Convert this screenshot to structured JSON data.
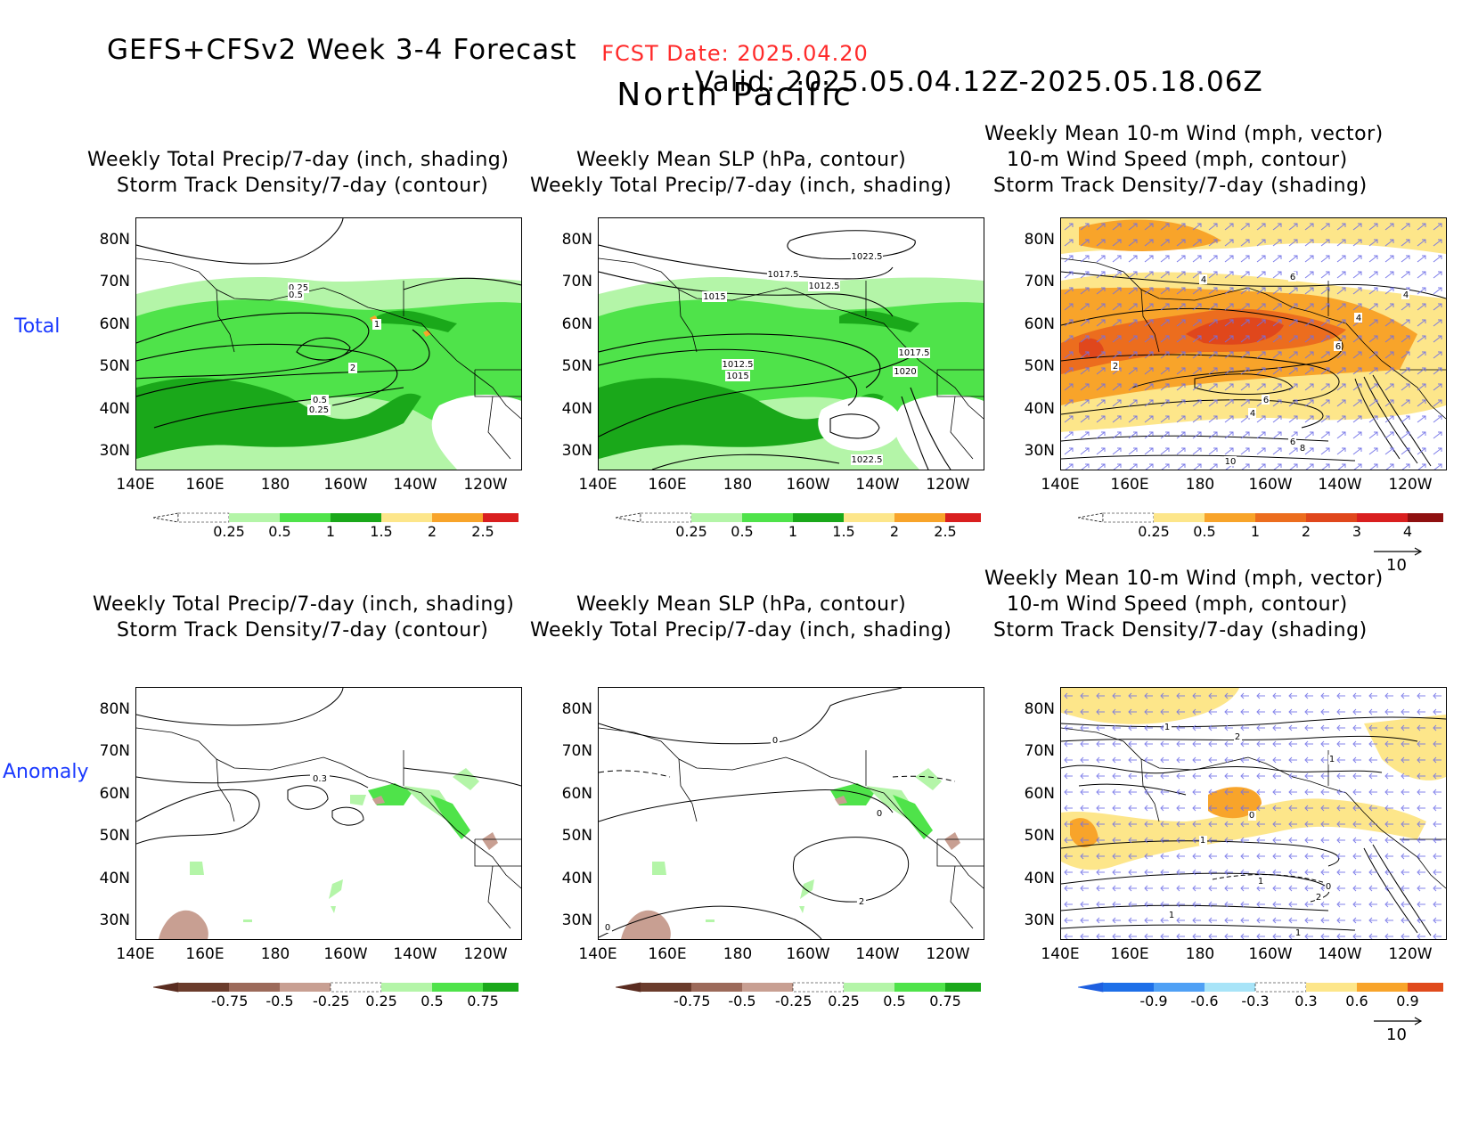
{
  "header": {
    "title_left": "GEFS+CFSv2 Week 3-4 Forecast",
    "title_right": "Valid: 2025.05.04.12Z-2025.05.18.06Z",
    "fcst_date": "FCST Date: 2025.04.20",
    "region": "North Pacific"
  },
  "rows": {
    "total": "Total",
    "anomaly": "Anomaly"
  },
  "titles": {
    "precip": [
      "Weekly Total Precip/7-day (inch, shading)",
      "Storm Track Density/7-day (contour)"
    ],
    "slp": [
      "Weekly Mean SLP (hPa, contour)",
      "Weekly Total Precip/7-day (inch, shading)"
    ],
    "wind": [
      "Weekly Mean 10-m Wind (mph, vector)",
      "10-m Wind Speed (mph, contour)",
      "Storm Track Density/7-day (shading)"
    ]
  },
  "axes": {
    "lat": [
      "80N",
      "70N",
      "60N",
      "50N",
      "40N",
      "30N"
    ],
    "lon": [
      "140E",
      "160E",
      "180",
      "160W",
      "140W",
      "120W"
    ]
  },
  "colorbars": {
    "precip_total": [
      "0.25",
      "0.5",
      "1",
      "1.5",
      "2",
      "2.5"
    ],
    "storm_total": [
      "0.25",
      "0.5",
      "1",
      "2",
      "3",
      "4"
    ],
    "precip_anom": [
      "-0.75",
      "-0.5",
      "-0.25",
      "0.25",
      "0.5",
      "0.75"
    ],
    "storm_anom": [
      "-0.9",
      "-0.6",
      "-0.3",
      "0.3",
      "0.6",
      "0.9"
    ],
    "vector_ref": "10"
  },
  "contour_labels": {
    "p1": [
      "0.25",
      "0.5",
      "1",
      "2",
      "0.5",
      "0.25"
    ],
    "p2": [
      "1022.5",
      "1017.5",
      "1015",
      "1012.5",
      "1012.5",
      "1015",
      "1017.5",
      "1020",
      "1022.5"
    ],
    "p3": [
      "4",
      "6",
      "4",
      "2",
      "6",
      "6",
      "4",
      "6",
      "8",
      "10",
      "4"
    ],
    "p4": [
      "0.3"
    ],
    "p5": [
      "0",
      "0",
      "2",
      "0"
    ],
    "p6": [
      "1",
      "2",
      "1",
      "0",
      "1",
      "1",
      "2",
      "1",
      "0",
      "1"
    ]
  },
  "colors": {
    "green_light": "#b4f5a8",
    "green_mid": "#4fe34a",
    "green_dark": "#1aa81a",
    "yellow": "#fde68a",
    "orange": "#f8a42a",
    "orange_dark": "#ec6d1e",
    "red": "#d91f1f",
    "brown": "#c89f92",
    "vector": "#6f6fe8",
    "blue": "#1a39ff",
    "fcst_red": "#ff2a2a"
  }
}
